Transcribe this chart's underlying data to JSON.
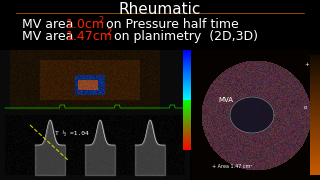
{
  "title": "Rheumatic",
  "line1_prefix": "MV area ",
  "line1_value": "1.0cm",
  "line1_sup": "2",
  "line1_suffix": " on Pressure half time",
  "line2_prefix": "MV area ",
  "line2_value": "1.47cm",
  "line2_sup": "2",
  "line2_suffix": " on planimetry  (2D,3D)",
  "title_color": "#ffffff",
  "value_color": "#ff2200",
  "text_color": "#ffffff",
  "background_color": "#000000",
  "title_fontsize": 11,
  "text_fontsize": 9.0,
  "t_half_label": "T ½ =1.04",
  "mva_label": "MVA",
  "area_label": "+ Area 1.47 cm²"
}
